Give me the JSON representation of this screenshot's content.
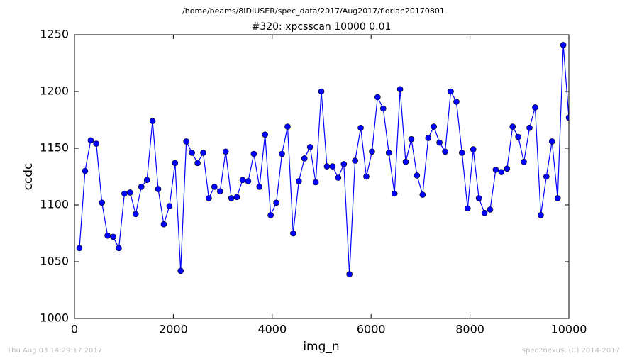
{
  "chart_data": {
    "type": "line",
    "suptitle": "/home/beams/8IDIUSER/spec_data/2017/Aug2017/florian20170801",
    "title": "#320: xpcsscan 10000 0.01",
    "xlabel": "img_n",
    "ylabel": "ccdc",
    "footer_left": "Thu Aug 03 14:29:17 2017",
    "footer_right": "spec2nexus, (C) 2014-2017",
    "x": [
      100,
      214,
      328,
      441,
      555,
      669,
      783,
      897,
      1010,
      1124,
      1238,
      1352,
      1466,
      1579,
      1693,
      1807,
      1921,
      2035,
      2148,
      2262,
      2376,
      2490,
      2604,
      2717,
      2831,
      2945,
      3059,
      3173,
      3286,
      3400,
      3514,
      3628,
      3742,
      3855,
      3969,
      4083,
      4197,
      4311,
      4424,
      4538,
      4652,
      4766,
      4880,
      4993,
      5107,
      5221,
      5335,
      5449,
      5562,
      5676,
      5790,
      5904,
      6018,
      6131,
      6245,
      6359,
      6473,
      6587,
      6700,
      6814,
      6928,
      7042,
      7156,
      7269,
      7383,
      7497,
      7611,
      7725,
      7838,
      7952,
      8066,
      8180,
      8294,
      8407,
      8521,
      8635,
      8749,
      8863,
      8976,
      9090,
      9204,
      9318,
      9432,
      9545,
      9659,
      9773,
      9887,
      10000
    ],
    "series": [
      {
        "color": "#0000ff",
        "values": [
          1062,
          1130,
          1157,
          1154,
          1102,
          1073,
          1072,
          1062,
          1110,
          1111,
          1092,
          1116,
          1122,
          1174,
          1114,
          1083,
          1099,
          1137,
          1042,
          1156,
          1146,
          1137,
          1146,
          1106,
          1116,
          1112,
          1147,
          1106,
          1107,
          1122,
          1121,
          1145,
          1116,
          1162,
          1091,
          1102,
          1145,
          1169,
          1075,
          1121,
          1141,
          1151,
          1120,
          1200,
          1134,
          1134,
          1124,
          1136,
          1039,
          1139,
          1168,
          1125,
          1147,
          1195,
          1185,
          1146,
          1110,
          1202,
          1138,
          1158,
          1126,
          1109,
          1159,
          1169,
          1155,
          1147,
          1200,
          1191,
          1146,
          1097,
          1149,
          1106,
          1093,
          1096,
          1131,
          1129,
          1132,
          1169,
          1160,
          1138,
          1168,
          1186,
          1091,
          1125,
          1156,
          1106,
          1241,
          1177
        ]
      }
    ],
    "xlim": [
      0,
      10000
    ],
    "xticks": [
      0,
      2000,
      4000,
      6000,
      8000,
      10000
    ],
    "ylim": [
      1000,
      1250
    ],
    "yticks": [
      1000,
      1050,
      1100,
      1150,
      1200,
      1250
    ]
  }
}
